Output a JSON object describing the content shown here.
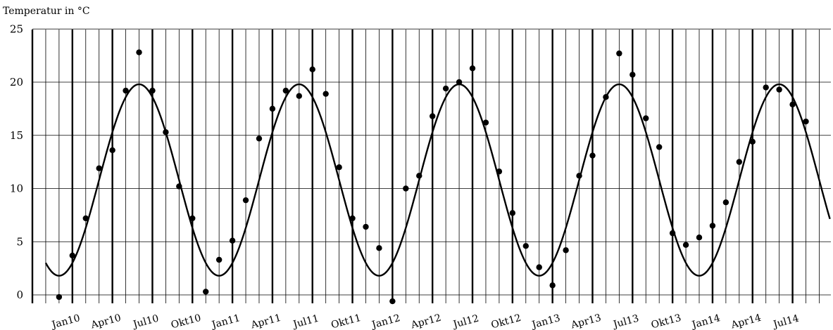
{
  "chart_data": {
    "type": "scatter",
    "title": "",
    "ylabel": "Temperatur in  °C",
    "xlabel": "",
    "ylim": [
      0,
      25
    ],
    "yticks": [
      0,
      5,
      10,
      15,
      20,
      25
    ],
    "grid": true,
    "x_start": "2009-10",
    "x_end": "2014-09",
    "xtick_labels": [
      "Jan10",
      "Apr10",
      "Jul10",
      "Okt10",
      "Jan11",
      "Apr11",
      "Jul11",
      "Okt11",
      "Jan12",
      "Apr12",
      "Jul12",
      "Okt12",
      "Jan13",
      "Apr13",
      "Jul13",
      "Okt13",
      "Jan14",
      "Apr14",
      "Jul14"
    ],
    "xtick_positions": [
      "2010-01",
      "2010-04",
      "2010-07",
      "2010-10",
      "2011-01",
      "2011-04",
      "2011-07",
      "2011-10",
      "2012-01",
      "2012-04",
      "2012-07",
      "2012-10",
      "2013-01",
      "2013-04",
      "2013-07",
      "2013-10",
      "2014-01",
      "2014-04",
      "2014-07"
    ],
    "points": [
      {
        "x": "2009-12",
        "y": -0.2
      },
      {
        "x": "2010-01",
        "y": 3.7
      },
      {
        "x": "2010-02",
        "y": 7.2
      },
      {
        "x": "2010-03",
        "y": 11.9
      },
      {
        "x": "2010-04",
        "y": 13.6
      },
      {
        "x": "2010-05",
        "y": 19.2
      },
      {
        "x": "2010-06",
        "y": 22.8
      },
      {
        "x": "2010-07",
        "y": 19.2
      },
      {
        "x": "2010-08",
        "y": 15.3
      },
      {
        "x": "2010-09",
        "y": 10.2
      },
      {
        "x": "2010-10",
        "y": 7.2
      },
      {
        "x": "2010-11",
        "y": 0.3
      },
      {
        "x": "2010-12",
        "y": 3.3
      },
      {
        "x": "2011-01",
        "y": 5.1
      },
      {
        "x": "2011-02",
        "y": 8.9
      },
      {
        "x": "2011-03",
        "y": 14.7
      },
      {
        "x": "2011-04",
        "y": 17.5
      },
      {
        "x": "2011-05",
        "y": 19.2
      },
      {
        "x": "2011-06",
        "y": 18.7
      },
      {
        "x": "2011-07",
        "y": 21.2
      },
      {
        "x": "2011-08",
        "y": 18.9
      },
      {
        "x": "2011-09",
        "y": 12.0
      },
      {
        "x": "2011-10",
        "y": 7.2
      },
      {
        "x": "2011-11",
        "y": 6.4
      },
      {
        "x": "2011-12",
        "y": 4.4
      },
      {
        "x": "2012-01",
        "y": -0.6
      },
      {
        "x": "2012-02",
        "y": 10.0
      },
      {
        "x": "2012-03",
        "y": 11.2
      },
      {
        "x": "2012-04",
        "y": 16.8
      },
      {
        "x": "2012-05",
        "y": 19.4
      },
      {
        "x": "2012-06",
        "y": 20.0
      },
      {
        "x": "2012-07",
        "y": 21.3
      },
      {
        "x": "2012-08",
        "y": 16.2
      },
      {
        "x": "2012-09",
        "y": 11.6
      },
      {
        "x": "2012-10",
        "y": 7.7
      },
      {
        "x": "2012-11",
        "y": 4.6
      },
      {
        "x": "2012-12",
        "y": 2.6
      },
      {
        "x": "2013-01",
        "y": 0.9
      },
      {
        "x": "2013-02",
        "y": 4.2
      },
      {
        "x": "2013-03",
        "y": 11.2
      },
      {
        "x": "2013-04",
        "y": 13.1
      },
      {
        "x": "2013-05",
        "y": 18.6
      },
      {
        "x": "2013-06",
        "y": 22.7
      },
      {
        "x": "2013-07",
        "y": 20.7
      },
      {
        "x": "2013-08",
        "y": 16.6
      },
      {
        "x": "2013-09",
        "y": 13.9
      },
      {
        "x": "2013-10",
        "y": 5.8
      },
      {
        "x": "2013-11",
        "y": 4.7
      },
      {
        "x": "2013-12",
        "y": 5.4
      },
      {
        "x": "2014-01",
        "y": 6.5
      },
      {
        "x": "2014-02",
        "y": 8.7
      },
      {
        "x": "2014-03",
        "y": 12.5
      },
      {
        "x": "2014-04",
        "y": 14.4
      },
      {
        "x": "2014-05",
        "y": 19.5
      },
      {
        "x": "2014-06",
        "y": 19.3
      },
      {
        "x": "2014-07",
        "y": 17.9
      },
      {
        "x": "2014-08",
        "y": 16.3
      }
    ],
    "fit_curve": {
      "shape": "sinusoid",
      "mean": 10.8,
      "amplitude": 9,
      "minimum": 1.8,
      "maximum": 19.8,
      "period_months": 12,
      "minima_at": [
        "2009-12",
        "2010-12",
        "2011-12",
        "2012-12",
        "2013-12"
      ],
      "maxima_at": [
        "2010-06",
        "2011-06",
        "2012-06",
        "2013-06",
        "2014-06"
      ]
    }
  }
}
